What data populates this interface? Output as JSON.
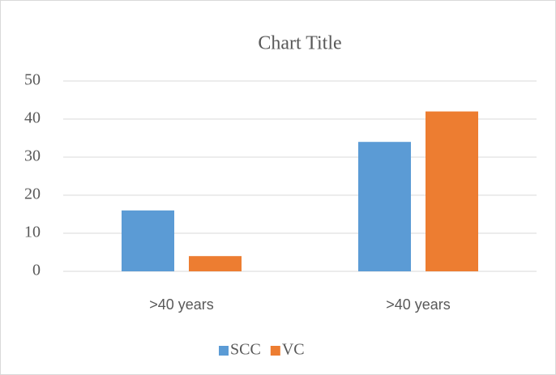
{
  "chart_data": {
    "type": "bar",
    "title": "Chart Title",
    "categories": [
      ">40 years",
      ">40 years"
    ],
    "series": [
      {
        "name": "SCC",
        "color": "#5b9bd5",
        "values": [
          16,
          34
        ]
      },
      {
        "name": "VC",
        "color": "#ed7d31",
        "values": [
          4,
          42
        ]
      }
    ],
    "ylim": [
      0,
      50
    ],
    "yticks": [
      0,
      10,
      20,
      30,
      40,
      50
    ],
    "grid": true,
    "legend": "bottom"
  }
}
